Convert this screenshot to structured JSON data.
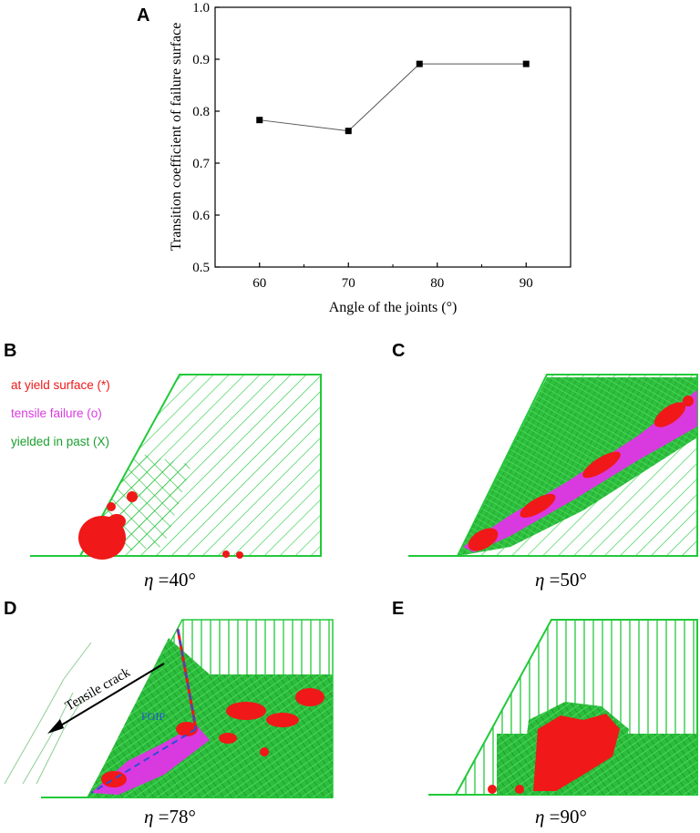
{
  "chart_data": {
    "type": "line",
    "panel_label": "A",
    "x": [
      60,
      70,
      78,
      90
    ],
    "y": [
      0.783,
      0.762,
      0.891,
      0.891
    ],
    "xlabel": "Angle of the joints (°)",
    "ylabel": "Transition coefficient of failure surface",
    "xlim": [
      55,
      95
    ],
    "ylim": [
      0.5,
      1.0
    ],
    "xticks": [
      "60",
      "70",
      "80",
      "90"
    ],
    "yticks": [
      "0.5",
      "0.6",
      "0.7",
      "0.8",
      "0.9",
      "1.0"
    ],
    "xtick_values": [
      60,
      70,
      80,
      90
    ],
    "ytick_values": [
      0.5,
      0.6,
      0.7,
      0.8,
      0.9,
      1.0
    ],
    "marker": "square",
    "line_color": "#555555",
    "marker_color": "#000000"
  },
  "panels": {
    "B": {
      "label": "B",
      "eta": "η",
      "angle": " =40°",
      "legend": [
        "at yield surface (*)",
        "tensile failure (o)",
        "yielded in past (X)"
      ]
    },
    "C": {
      "label": "C",
      "eta": "η",
      "angle": " =50°"
    },
    "D": {
      "label": "D",
      "eta": "η",
      "angle": " =78°",
      "annotation": "Tensile crack",
      "foip": "FOIP"
    },
    "E": {
      "label": "E",
      "eta": "η",
      "angle": " =90°"
    }
  },
  "colors": {
    "green": "#22c93a",
    "dark_green": "#1b9e2e",
    "red": "#f01818",
    "magenta": "#d93adf",
    "blue": "#2a4fd8"
  }
}
